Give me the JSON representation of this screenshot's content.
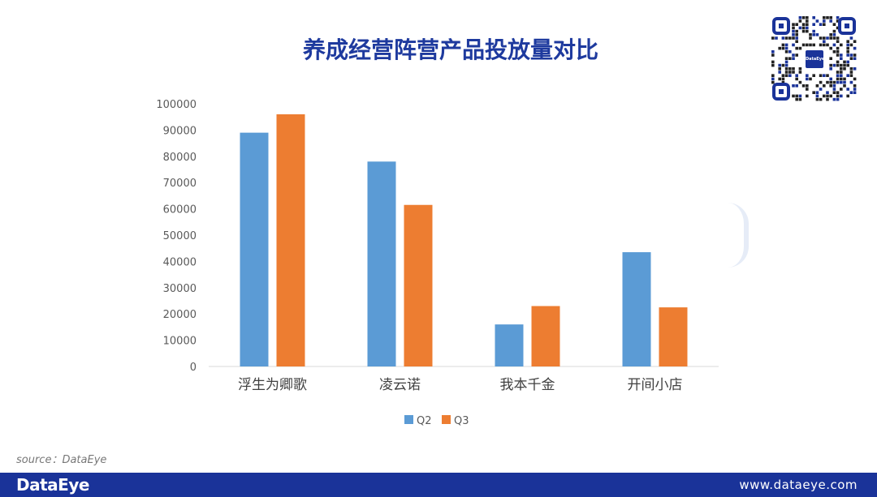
{
  "title": "养成经营阵营产品投放量对比",
  "source": "source：DataEye",
  "footer": {
    "logo": "DataEye",
    "url": "www.dataeye.com"
  },
  "qr": {
    "badge": "DataEye"
  },
  "colors": {
    "q2": "#5b9bd5",
    "q3": "#ed7d31",
    "title": "#1e3a9e",
    "footer": "#1a3399"
  },
  "chart_data": {
    "type": "bar",
    "title": "养成经营阵营产品投放量对比",
    "categories": [
      "浮生为卿歌",
      "凌云诺",
      "我本千金",
      "开间小店"
    ],
    "series": [
      {
        "name": "Q2",
        "values": [
          89000,
          78000,
          16000,
          43500
        ]
      },
      {
        "name": "Q3",
        "values": [
          96000,
          61500,
          23000,
          22500
        ]
      }
    ],
    "ylim": [
      0,
      100000
    ],
    "yticks": [
      "0",
      "10000",
      "20000",
      "30000",
      "40000",
      "50000",
      "60000",
      "70000",
      "80000",
      "90000",
      "100000"
    ],
    "grid": false,
    "legend": "bottom",
    "xlabel": "",
    "ylabel": ""
  }
}
